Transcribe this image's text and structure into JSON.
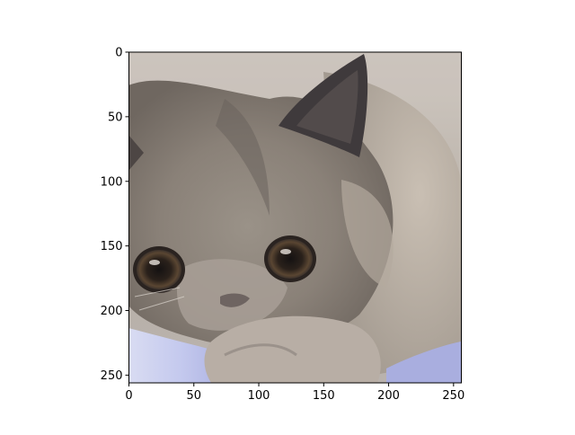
{
  "image": {
    "subject": "cat-photo",
    "palette": {
      "fur_light": "#bdb4aa",
      "fur_mid": "#8d857b",
      "fur_dark": "#5a5552",
      "ear_dark": "#3f3a3c",
      "eye_iris": "#4a3a2a",
      "eye_pupil": "#151212",
      "background_top": "#cfc8c1",
      "background_blue": "#a9aedf"
    }
  },
  "axes": {
    "x_ticks": [
      "0",
      "50",
      "100",
      "150",
      "200",
      "250"
    ],
    "y_ticks": [
      "0",
      "50",
      "100",
      "150",
      "200",
      "250"
    ]
  },
  "axis_range": {
    "x": [
      0,
      256
    ],
    "y": [
      0,
      256
    ]
  },
  "tick_values": {
    "x": [
      0,
      50,
      100,
      150,
      200,
      250
    ],
    "y": [
      0,
      50,
      100,
      150,
      200,
      250
    ]
  }
}
